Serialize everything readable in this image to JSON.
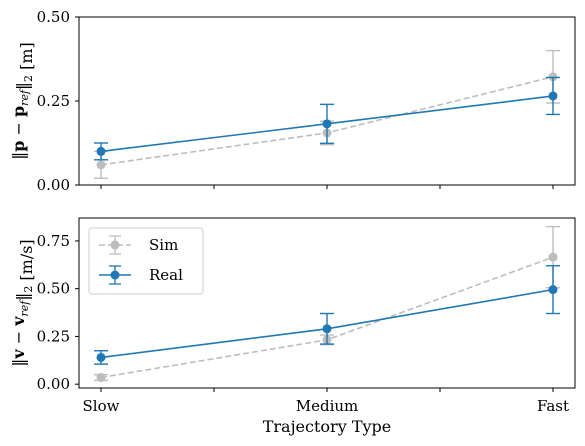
{
  "chart_data": [
    {
      "type": "line",
      "categories": [
        "Slow",
        "Medium",
        "Fast"
      ],
      "ylabel": "‖p − p_ref‖₂ [m]",
      "ylim": [
        0,
        0.5
      ],
      "yticks": [
        "0.00",
        "0.25",
        "0.50"
      ],
      "show_x_tick_labels": false,
      "series": [
        {
          "name": "Sim",
          "color": "#bdbdbd",
          "style": "dashed",
          "values": [
            0.06,
            0.155,
            0.322
          ],
          "errors": [
            0.04,
            0.035,
            0.078
          ]
        },
        {
          "name": "Real",
          "color": "#1f77b4",
          "style": "solid",
          "values": [
            0.1,
            0.182,
            0.265
          ],
          "errors": [
            0.025,
            0.058,
            0.055
          ]
        }
      ]
    },
    {
      "type": "line",
      "categories": [
        "Slow",
        "Medium",
        "Fast"
      ],
      "xlabel": "Trajectory Type",
      "ylabel": "‖v − v_ref‖₂ [m/s]",
      "ylim": [
        -0.02,
        0.87
      ],
      "yticks": [
        "0.00",
        "0.25",
        "0.50",
        "0.75"
      ],
      "show_x_tick_labels": true,
      "legend": "upper-left",
      "series": [
        {
          "name": "Sim",
          "color": "#bdbdbd",
          "style": "dashed",
          "values": [
            0.035,
            0.232,
            0.665
          ],
          "errors": [
            0.015,
            0.025,
            0.16
          ]
        },
        {
          "name": "Real",
          "color": "#1f77b4",
          "style": "solid",
          "values": [
            0.14,
            0.29,
            0.495
          ],
          "errors": [
            0.035,
            0.08,
            0.125
          ]
        }
      ]
    }
  ]
}
